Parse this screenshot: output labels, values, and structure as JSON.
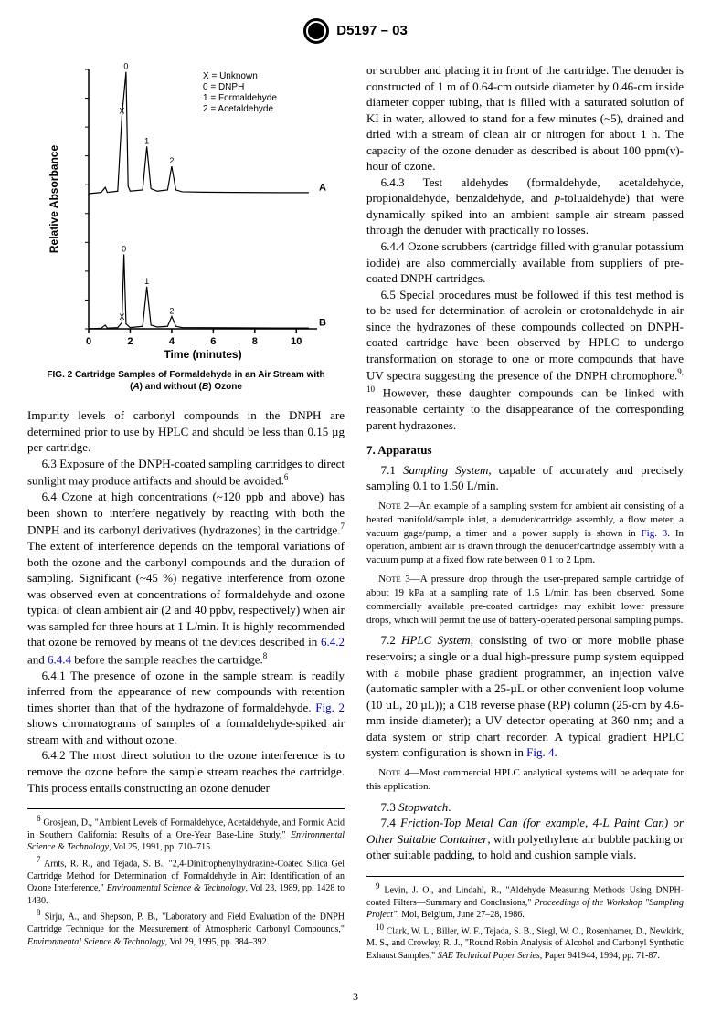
{
  "header": {
    "designation": "D5197 – 03"
  },
  "figure2": {
    "type": "line",
    "xlabel": "Time (minutes)",
    "ylabel": "Relative Absorbance",
    "xlim": [
      0,
      11
    ],
    "xtick_step": 2,
    "xticks": [
      0,
      2,
      4,
      6,
      8,
      10
    ],
    "legend_items": [
      "X = Unknown",
      "0 = DNPH",
      "1 = Formaldehyde",
      "2 = Acetaldehyde"
    ],
    "series_labels": {
      "A": "A",
      "B": "B"
    },
    "peak_marks_A": [
      "X",
      "0",
      "1",
      "2"
    ],
    "peak_marks_B": [
      "X",
      "0",
      "1",
      "2"
    ],
    "axis_color": "#000000",
    "line_color": "#000000",
    "background_color": "#ffffff",
    "label_fontsize": 12,
    "axis_fontfamily": "Arial",
    "axis_fontweight": "bold",
    "caption": "FIG. 2 Cartridge Samples of Formaldehyde in an Air Stream with (A) and without (B) Ozone",
    "caption_parts": {
      "main": "FIG. 2 Cartridge Samples of Formaldehyde in an Air Stream with",
      "line2a": "(",
      "A": "A",
      "line2b": ") and without (",
      "B": "B",
      "line2c": ") Ozone"
    },
    "traceA": {
      "points": [
        [
          0,
          0
        ],
        [
          0.6,
          1
        ],
        [
          0.8,
          5
        ],
        [
          0.9,
          1
        ],
        [
          1.4,
          2
        ],
        [
          1.6,
          62
        ],
        [
          1.8,
          98
        ],
        [
          1.9,
          6
        ],
        [
          2.0,
          2
        ],
        [
          2.6,
          3
        ],
        [
          2.8,
          38
        ],
        [
          3.0,
          4
        ],
        [
          3.3,
          2
        ],
        [
          3.8,
          3
        ],
        [
          4.0,
          22
        ],
        [
          4.2,
          3
        ],
        [
          4.5,
          1.5
        ],
        [
          5.5,
          1.2
        ],
        [
          7,
          1
        ],
        [
          9,
          0.8
        ],
        [
          10.6,
          0.8
        ]
      ]
    },
    "traceB": {
      "points": [
        [
          0,
          0
        ],
        [
          0.6,
          0.5
        ],
        [
          0.8,
          3
        ],
        [
          0.9,
          0.6
        ],
        [
          1.4,
          1
        ],
        [
          1.6,
          5
        ],
        [
          1.7,
          60
        ],
        [
          1.8,
          4
        ],
        [
          2.0,
          1
        ],
        [
          2.6,
          2
        ],
        [
          2.8,
          34
        ],
        [
          3.0,
          3
        ],
        [
          3.3,
          1.5
        ],
        [
          3.8,
          2
        ],
        [
          4.0,
          10
        ],
        [
          4.2,
          2
        ],
        [
          4.5,
          1
        ],
        [
          5.5,
          0.9
        ],
        [
          7,
          0.8
        ],
        [
          9,
          0.7
        ],
        [
          10.6,
          0.7
        ]
      ]
    }
  },
  "body": {
    "p_impurity": "Impurity levels of carbonyl compounds in the DNPH are determined prior to use by HPLC and should be less than 0.15 µg per cartridge.",
    "p_6_3_a": "6.3 Exposure of the DNPH-coated sampling cartridges to direct sunlight may produce artifacts and should be avoided.",
    "p_6_4_a": "6.4 Ozone at high concentrations (~120 ppb and above) has been shown to interfere negatively by reacting with both the DNPH and its carbonyl derivatives (hydrazones) in the cartridge.",
    "p_6_4_b": " The extent of interference depends on the temporal variations of both the ozone and the carbonyl compounds and the duration of sampling. Significant (~45 %) negative interference from ozone was observed even at concentrations of formaldehyde and ozone typical of clean ambient air (2 and 40 ppbv, respectively) when air was sampled for three hours at 1 L/min. It is highly recommended that ozone be removed by means of the devices described in ",
    "link_642": "6.4.2",
    "and": " and ",
    "link_644": "6.4.4",
    "p_6_4_c": " before the sample reaches the cartridge.",
    "p_6_4_1_a": "6.4.1 The presence of ozone in the sample stream is readily inferred from the appearance of new compounds with retention times shorter than that of the hydrazone of formaldehyde. ",
    "link_fig2": "Fig. 2",
    "p_6_4_1_b": " shows chromatograms of samples of a formaldehyde-spiked air stream with and without ozone.",
    "p_6_4_2": "6.4.2 The most direct solution to the ozone interference is to remove the ozone before the sample stream reaches the cartridge. This process entails constructing an ozone denuder",
    "p_col2_top": "or scrubber and placing it in front of the cartridge. The denuder is constructed of 1 m of 0.64-cm outside diameter by 0.46-cm inside diameter copper tubing, that is filled with a saturated solution of KI in water, allowed to stand for a few minutes (~5), drained and dried with a stream of clean air or nitrogen for about 1 h. The capacity of the ozone denuder as described is about 100 ppm(v)-hour of ozone.",
    "p_6_4_3_a": "6.4.3 Test aldehydes (formaldehyde, acetaldehyde, propionaldehyde, benzaldehyde, and ",
    "p_tol": "p",
    "p_6_4_3_b": "-tolualdehyde) that were dynamically spiked into an ambient sample air stream passed through the denuder with practically no losses.",
    "p_6_4_4": "6.4.4 Ozone scrubbers (cartridge filled with granular potassium iodide) are also commercially available from suppliers of pre-coated DNPH cartridges.",
    "p_6_5_a": "6.5 Special procedures must be followed if this test method is to be used for determination of acrolein or crotonaldehyde in air since the hydrazones of these compounds collected on DNPH-coated cartridge have been observed by HPLC to undergo transformation on storage to one or more compounds that have UV spectra suggesting the presence of the DNPH chromophore.",
    "p_6_5_b": " However, these daughter compounds can be linked with reasonable certainty to the disappearance of the corresponding parent hydrazones.",
    "sec7": "7. Apparatus",
    "p_7_1_a": "7.1 ",
    "p_7_1_i": "Sampling System",
    "p_7_1_b": ", capable of accurately and precisely sampling 0.1 to 1.50 L/min.",
    "note2_a": "N",
    "note2_b": "OTE",
    "note2_c": " 2—An example of a sampling system for ambient air consisting of a heated manifold/sample inlet, a denuder/cartridge assembly, a flow meter, a vacuum gage/pump, a timer and a power supply is shown in ",
    "link_fig3": "Fig. 3",
    "note2_d": ". In operation, ambient air is drawn through the denuder/cartridge assembly with a vacuum pump at a fixed flow rate between 0.1 to 2 Lpm.",
    "note3_a": "N",
    "note3_b": "OTE",
    "note3_c": " 3—A pressure drop through the user-prepared sample cartridge of about 19 kPa at a sampling rate of 1.5 L/min has been observed. Some commercially available pre-coated cartridges may exhibit lower pressure drops, which will permit the use of battery-operated personal sampling pumps.",
    "p_7_2_a": "7.2 ",
    "p_7_2_i": "HPLC System",
    "p_7_2_b": ", consisting of two or more mobile phase reservoirs; a single or a dual high-pressure pump system equipped with a mobile phase gradient programmer, an injection valve (automatic sampler with a 25-µL or other convenient loop volume (10 µL, 20 µL)); a C18 reverse phase (RP) column (25-cm by 4.6-mm inside diameter); a UV detector operating at 360 nm; and a data system or strip chart recorder. A typical gradient HPLC system configuration is shown in ",
    "link_fig4": "Fig. 4",
    "period": ".",
    "note4_a": "N",
    "note4_b": "OTE",
    "note4_c": " 4—Most commercial HPLC analytical systems will be adequate for this application.",
    "p_7_3_a": "7.3 ",
    "p_7_3_i": "Stopwatch",
    "p_7_4_a": "7.4 ",
    "p_7_4_i": "Friction-Top Metal Can (for example, 4-L Paint Can) or Other Suitable Container",
    "p_7_4_b": ", with polyethylene air bubble packing or other suitable padding, to hold and cushion sample vials."
  },
  "footnotes_left": {
    "f6": " Grosjean, D., \"Ambient Levels of Formaldehyde, Acetaldehyde, and Formic Acid in Southern California: Results of a One-Year Base-Line Study,\" ",
    "f6i": "Environmental Science & Technology",
    "f6b": ", Vol 25, 1991, pp. 710–715.",
    "f7": " Arnts, R. R., and Tejada, S. B., \"2,4-Dinitrophenylhydrazine-Coated Silica Gel Cartridge Method for Determination of Formaldehyde in Air: Identification of an Ozone Interference,\" ",
    "f7i": "Environmental Science & Technology",
    "f7b": ", Vol 23, 1989, pp. 1428 to 1430.",
    "f8": " Sirju, A., and Shepson, P. B., \"Laboratory and Field Evaluation of the DNPH Cartridge Technique for the Measurement of Atmospheric Carbonyl Compounds,\" ",
    "f8i": "Environmental Science & Technology",
    "f8b": ", Vol 29, 1995, pp. 384–392."
  },
  "footnotes_right": {
    "f9": " Levin, J. O., and Lindahl, R., \"Aldehyde Measuring Methods Using DNPH-coated Filters—Summary and Conclusions,\" ",
    "f9i": "Proceedings of the Workshop \"Sampling Project\"",
    "f9b": ", Mol, Belgium, June 27–28, 1986.",
    "f10": " Clark, W. L., Biller, W. F., Tejada, S. B., Siegl, W. O., Rosenhamer, D., Newkirk, M. S., and Crowley, R. J., \"Round Robin Analysis of Alcohol and Carbonyl Synthetic Exhaust Samples,\" ",
    "f10i": "SAE Technical Paper Series",
    "f10b": ", Paper 941944, 1994, pp. 71-87."
  },
  "page": "3"
}
